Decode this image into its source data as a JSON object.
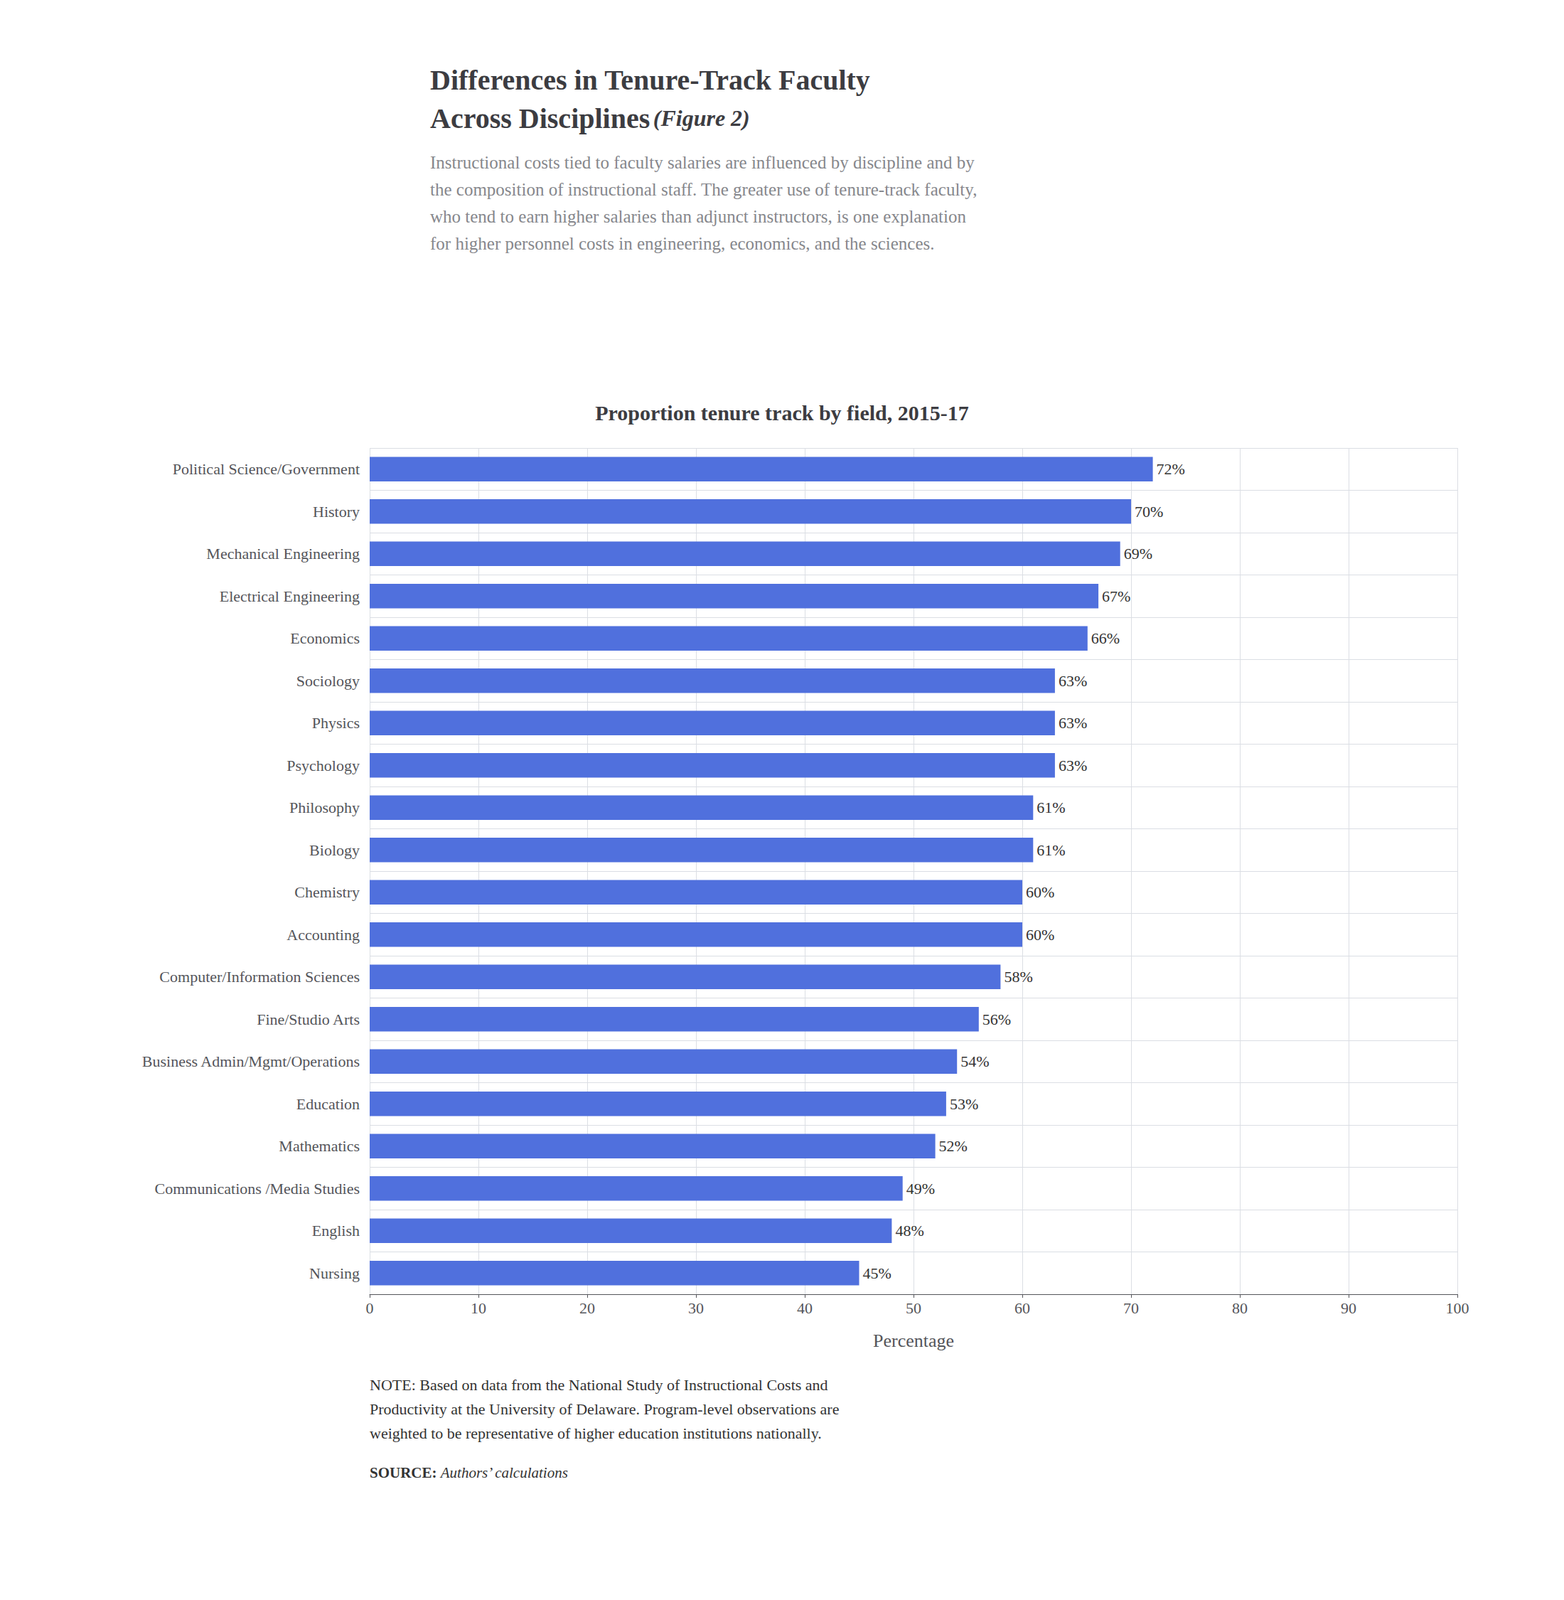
{
  "chart_data": {
    "type": "bar",
    "orientation": "horizontal",
    "title": "Differences in Tenure-Track Faculty\nAcross Disciplines",
    "figure_label": "(Figure 2)",
    "subtitle": "Instructional costs tied to faculty salaries are influenced by discipline and by\nthe composition of instructional staff. The greater use of tenure-track faculty,\nwho tend to earn higher salaries than adjunct instructors, is one explanation\nfor higher personnel costs in engineering, economics, and the sciences.",
    "chart_title": "Proportion tenure track by field, 2015-17",
    "categories": [
      "Political Science/Government",
      "History",
      "Mechanical Engineering",
      "Electrical Engineering",
      "Economics",
      "Sociology",
      "Physics",
      "Psychology",
      "Philosophy",
      "Biology",
      "Chemistry",
      "Accounting",
      "Computer/Information Sciences",
      "Fine/Studio Arts",
      "Business Admin/Mgmt/Operations",
      "Education",
      "Mathematics",
      "Communications /Media Studies",
      "English",
      "Nursing"
    ],
    "values": [
      72,
      70,
      69,
      67,
      66,
      63,
      63,
      63,
      61,
      61,
      60,
      60,
      58,
      56,
      54,
      53,
      52,
      49,
      48,
      45
    ],
    "value_labels": [
      "72%",
      "70%",
      "69%",
      "67%",
      "66%",
      "63%",
      "63%",
      "63%",
      "61%",
      "61%",
      "60%",
      "60%",
      "58%",
      "56%",
      "54%",
      "53%",
      "52%",
      "49%",
      "48%",
      "45%"
    ],
    "data_labels": true,
    "xlabel": "Percentage",
    "xlim": [
      0,
      100
    ],
    "xticks": [
      0,
      10,
      20,
      30,
      40,
      50,
      60,
      70,
      80,
      90,
      100
    ],
    "grid": true,
    "note": "NOTE: Based on data from the National Study of Instructional Costs and\nProductivity at the University of Delaware. Program-level observations are\nweighted to be representative of higher education institutions nationally.",
    "source_label": "SOURCE:",
    "source": "Authors’ calculations"
  }
}
